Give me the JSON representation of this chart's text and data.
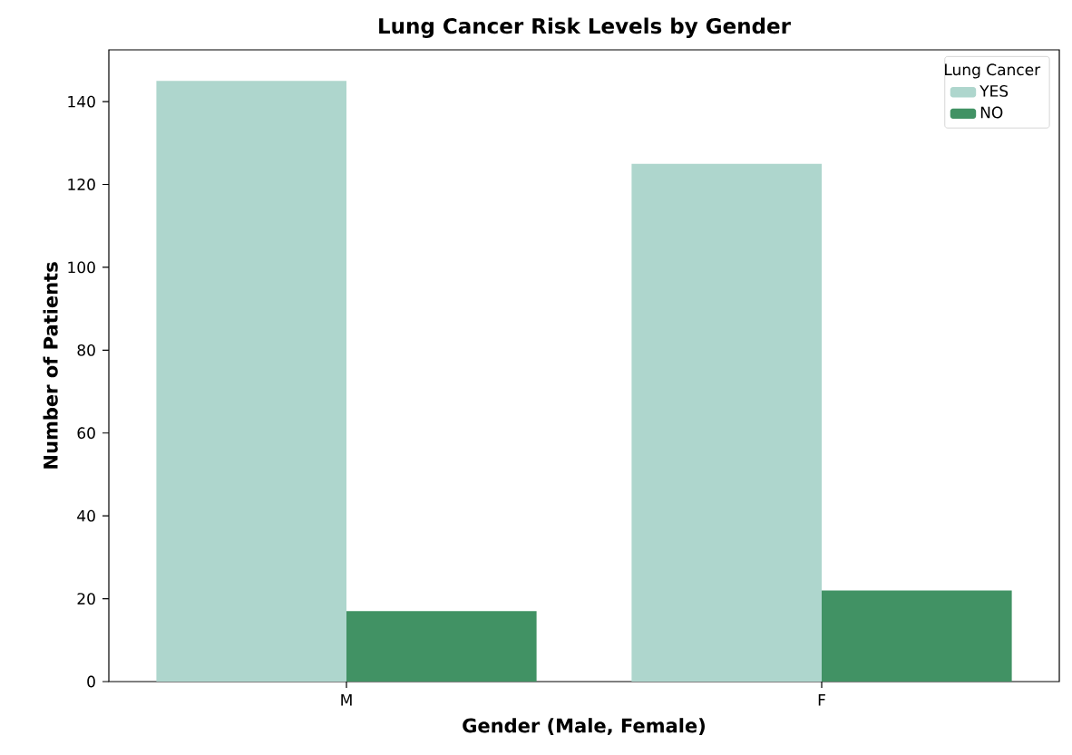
{
  "chart_data": {
    "type": "bar",
    "title": "Lung Cancer Risk Levels by Gender",
    "xlabel": "Gender (Male, Female)",
    "ylabel": "Number of Patients",
    "legend_title": "Lung Cancer",
    "categories": [
      "M",
      "F"
    ],
    "series": [
      {
        "name": "YES",
        "color": "#aed6cd",
        "values": [
          145,
          125
        ]
      },
      {
        "name": "NO",
        "color": "#419264",
        "values": [
          17,
          22
        ]
      }
    ],
    "ylim": [
      0,
      152.5
    ],
    "yticks": [
      0,
      20,
      40,
      60,
      80,
      100,
      120,
      140
    ],
    "grid": false,
    "legend": "top right"
  }
}
